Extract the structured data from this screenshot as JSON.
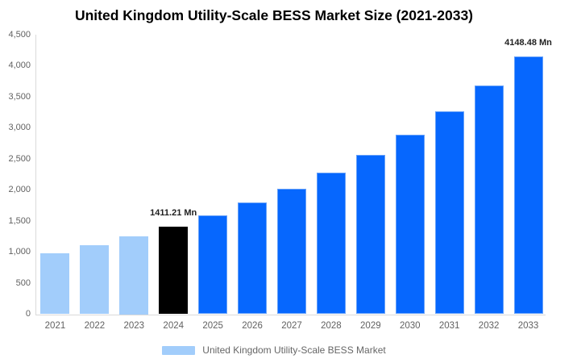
{
  "chart_data": {
    "type": "bar",
    "title": "United Kingdom Utility-Scale BESS Market Size (2021-2033)",
    "xlabel": "",
    "ylabel": "",
    "categories": [
      "2021",
      "2022",
      "2023",
      "2024",
      "2025",
      "2026",
      "2027",
      "2028",
      "2029",
      "2030",
      "2031",
      "2032",
      "2033"
    ],
    "values": [
      985,
      1110,
      1250,
      1411.21,
      1590,
      1795,
      2020,
      2280,
      2570,
      2895,
      3265,
      3680,
      4148.48
    ],
    "bar_roles": [
      "historical",
      "historical",
      "historical",
      "base-year",
      "forecast",
      "forecast",
      "forecast",
      "forecast",
      "forecast",
      "forecast",
      "forecast",
      "forecast",
      "forecast"
    ],
    "bar_value_labels": [
      "",
      "",
      "",
      "1411.21 Mn",
      "",
      "",
      "",
      "",
      "",
      "",
      "",
      "",
      "4148.48 Mn"
    ],
    "ylim": [
      0,
      4500
    ],
    "yticks": [
      {
        "value": 0,
        "label": "0"
      },
      {
        "value": 500,
        "label": "500"
      },
      {
        "value": 1000,
        "label": "1,000"
      },
      {
        "value": 1500,
        "label": "1,500"
      },
      {
        "value": 2000,
        "label": "2,000"
      },
      {
        "value": 2500,
        "label": "2,500"
      },
      {
        "value": 3000,
        "label": "3,000"
      },
      {
        "value": 3500,
        "label": "3,500"
      },
      {
        "value": 4000,
        "label": "4,000"
      },
      {
        "value": 4500,
        "label": "4,500"
      }
    ],
    "grid": false,
    "legend": {
      "position": "bottom",
      "label": "United Kingdom Utility-Scale BESS Market"
    },
    "colors": {
      "historical": "#a2cdfb",
      "base_year": "#000000",
      "forecast": "#0667fe",
      "legend_swatch": "#a2cdfb",
      "axis_line": "#dadada",
      "tick_text": "#616161",
      "title_text": "#000000",
      "data_label_text": "#1f1f1f"
    }
  }
}
